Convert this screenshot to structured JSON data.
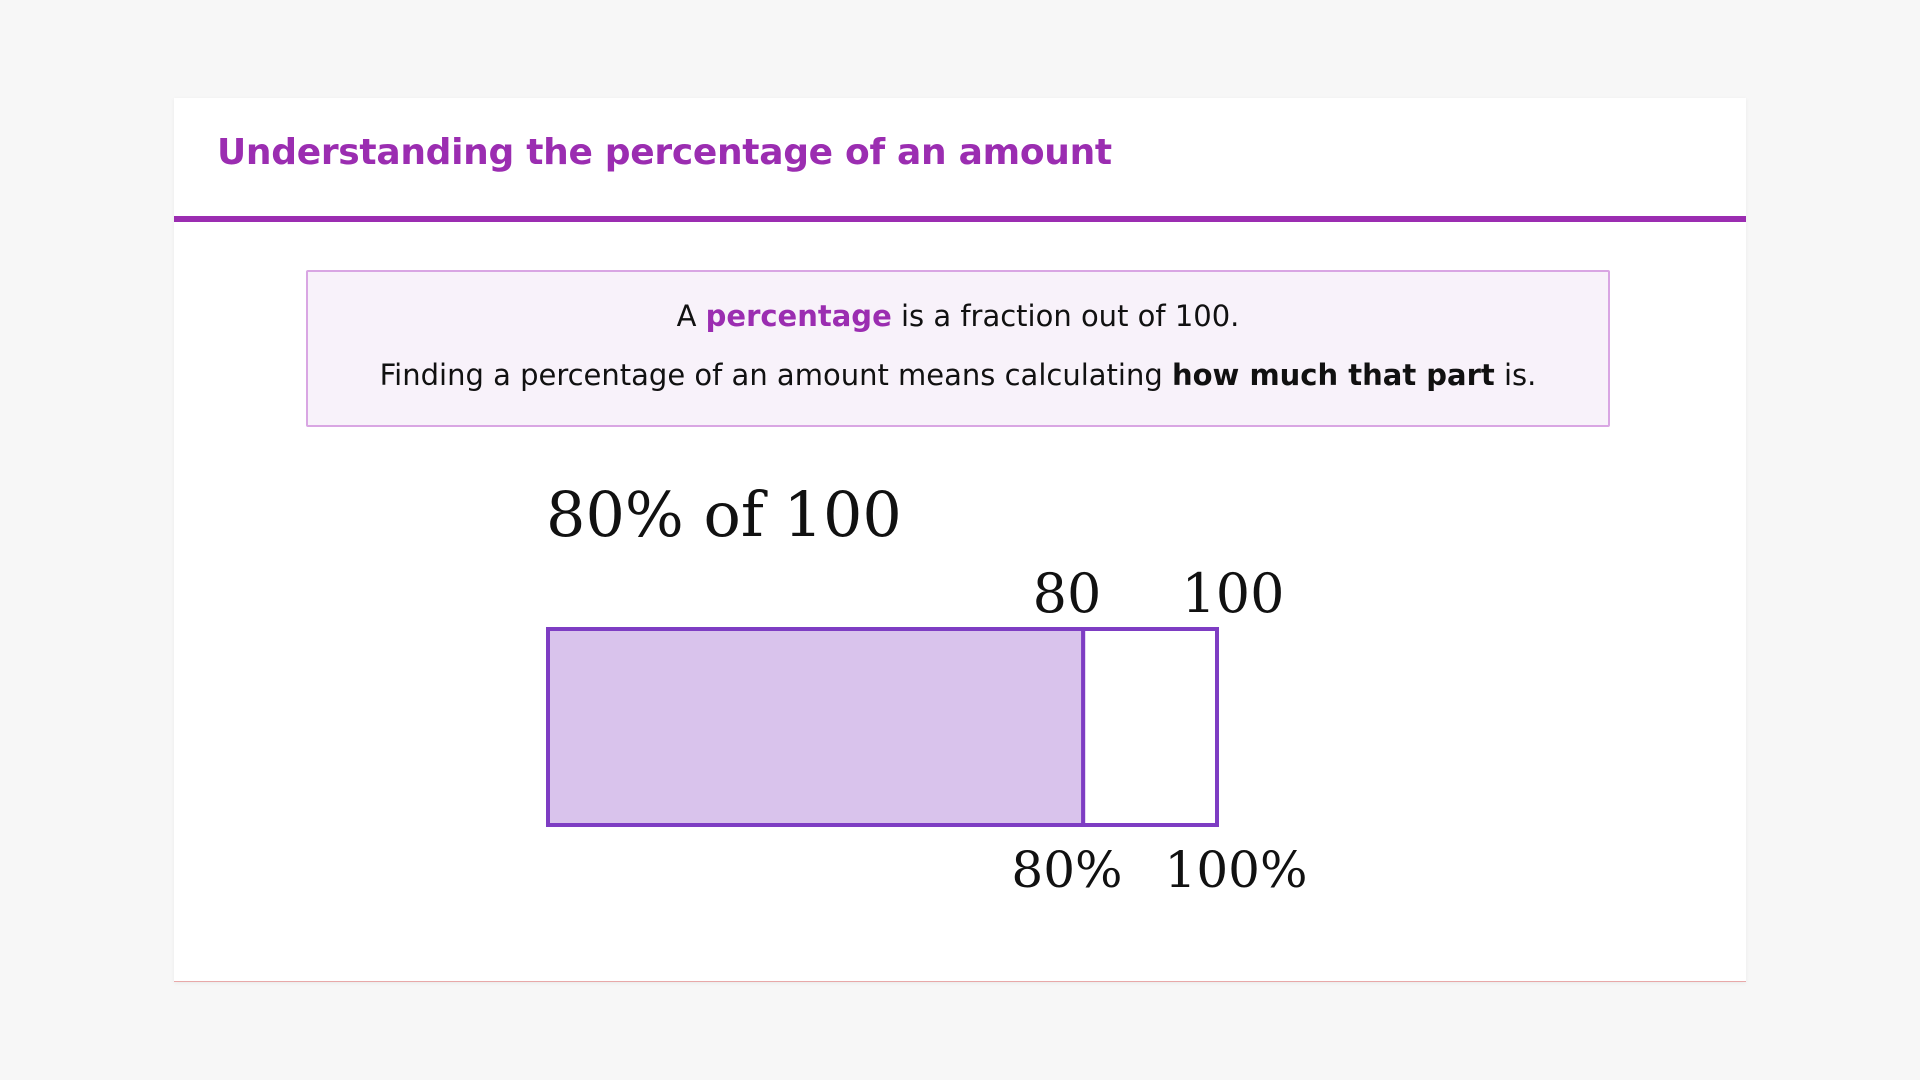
{
  "title": "Understanding the percentage of an amount",
  "definition": {
    "line1_pre": "A ",
    "line1_keyword": "percentage",
    "line1_post": " is a fraction out of 100.",
    "line2_pre": "Finding a percentage of an amount means calculating ",
    "line2_bold": "how much that part",
    "line2_post": " is."
  },
  "bar_model": {
    "heading": "80% of 100",
    "part_value_label": "80",
    "whole_value_label": "100",
    "part_percent_label": "80%",
    "whole_percent_label": "100%",
    "part_fraction": 0.8,
    "fill_color": "#d9c3ec",
    "stroke_color": "#7e3dc3"
  },
  "colors": {
    "accent": "#9b2db1",
    "definition_bg": "#f8f2fa",
    "definition_border": "#d9a6e3"
  }
}
